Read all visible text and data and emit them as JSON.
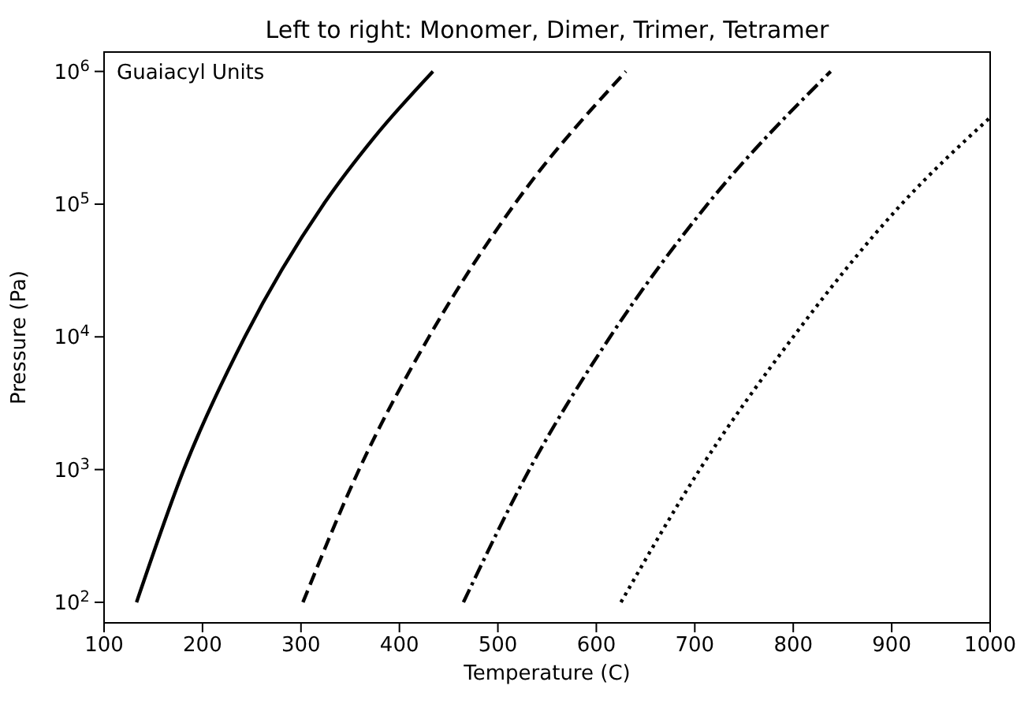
{
  "chart_data": {
    "type": "line",
    "title": "Left to right: Monomer, Dimer, Trimer, Tetramer",
    "xlabel": "Temperature (C)",
    "ylabel": "Pressure (Pa)",
    "annotations": [
      "Guaiacyl Units"
    ],
    "log": "y",
    "grid": false,
    "xlim": [
      100,
      1000
    ],
    "ylim": [
      70,
      1400000
    ],
    "xticks": [
      100,
      200,
      300,
      400,
      500,
      600,
      700,
      800,
      900,
      1000
    ],
    "yticks": [
      {
        "value": 100,
        "label": "10$^{2}$"
      },
      {
        "value": 1000,
        "label": "10$^{3}$"
      },
      {
        "value": 10000,
        "label": "10$^{4}$"
      },
      {
        "value": 100000,
        "label": "10$^{5}$"
      },
      {
        "value": 1000000,
        "label": "10$^{6}$"
      }
    ],
    "series": [
      {
        "color": "#000000",
        "line_style": "solid",
        "x": [
          133,
          181,
          243,
          323,
          374,
          434
        ],
        "values": [
          100,
          1000,
          10000,
          100000,
          316000,
          1000000
        ]
      },
      {
        "color": "#000000",
        "line_style": "dashed",
        "x": [
          302,
          359,
          430,
          517,
          630
        ],
        "values": [
          100,
          1000,
          10000,
          100000,
          1000000
        ]
      },
      {
        "color": "#000000",
        "line_style": "dashdot",
        "x": [
          465,
          532,
          614,
          713,
          838
        ],
        "values": [
          100,
          1000,
          10000,
          100000,
          1000000
        ]
      },
      {
        "color": "#000000",
        "line_style": "dotted",
        "x": [
          625,
          705,
          800,
          910,
          1000
        ],
        "values": [
          100,
          1000,
          10000,
          100000,
          450000
        ]
      }
    ]
  }
}
